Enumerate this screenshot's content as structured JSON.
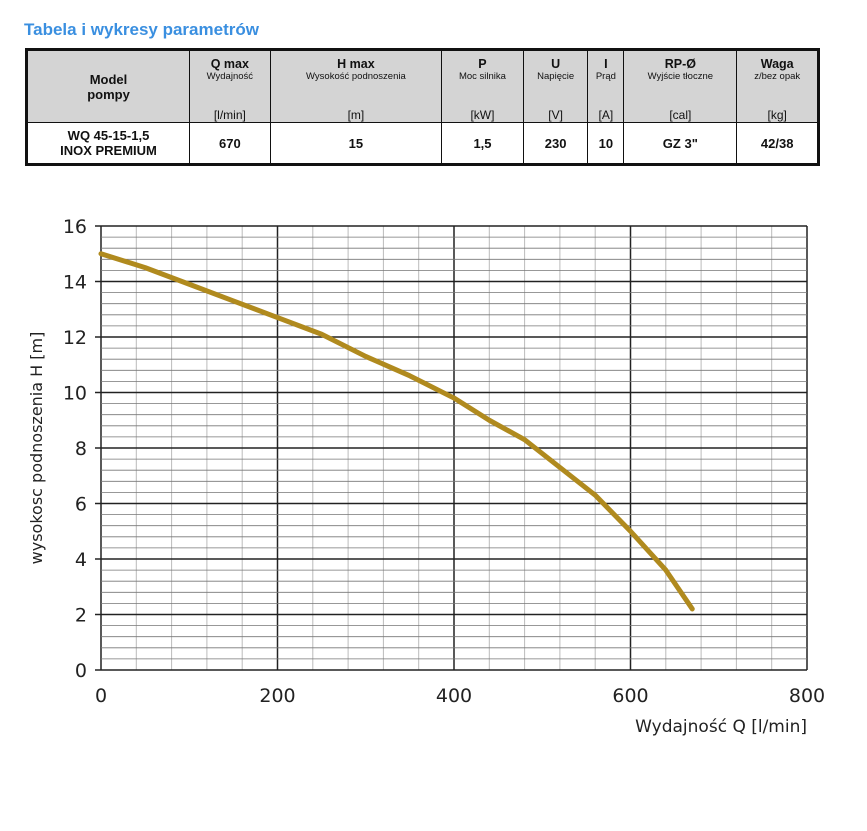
{
  "title": "Tabela i wykresy parametrów",
  "table": {
    "model_header": [
      "Model",
      "pompy"
    ],
    "columns": [
      {
        "name": "Q max",
        "desc": "Wydajność",
        "unit": "[l/min]"
      },
      {
        "name": "H max",
        "desc": "Wysokość podnoszenia",
        "unit": "[m]"
      },
      {
        "name": "P",
        "desc": "Moc silnika",
        "unit": "[kW]"
      },
      {
        "name": "U",
        "desc": "Napięcie",
        "unit": "[V]"
      },
      {
        "name": "I",
        "desc": "Prąd",
        "unit": "[A]"
      },
      {
        "name": "RP-Ø",
        "desc": "Wyjście tłoczne",
        "unit": "[cal]"
      },
      {
        "name": "Waga",
        "desc": "z/bez opak",
        "unit": "[kg]"
      }
    ],
    "row": {
      "model": [
        "WQ 45-15-1,5",
        "INOX PREMIUM"
      ],
      "values": [
        "670",
        "15",
        "1,5",
        "230",
        "10",
        "GZ 3\"",
        "42/38"
      ]
    }
  },
  "chart_data": {
    "type": "line",
    "title": "",
    "xlabel": "Wydajność Q [l/min]",
    "ylabel": "wysokosc podnoszenia H [m]",
    "xlim": [
      0,
      800
    ],
    "ylim": [
      0,
      16
    ],
    "xticks": [
      "0",
      "200",
      "400",
      "600",
      "800"
    ],
    "yticks": [
      "0",
      "2",
      "4",
      "6",
      "8",
      "10",
      "12",
      "14",
      "16"
    ],
    "grid": true,
    "series": [
      {
        "name": "WQ 45-15-1,5",
        "color": "#b08a1e",
        "x": [
          0,
          50,
          100,
          150,
          200,
          250,
          300,
          350,
          400,
          440,
          480,
          520,
          560,
          600,
          640,
          670
        ],
        "y": [
          15,
          14.5,
          13.9,
          13.3,
          12.7,
          12.1,
          11.3,
          10.6,
          9.8,
          9.0,
          8.3,
          7.3,
          6.3,
          5.0,
          3.6,
          2.2
        ]
      }
    ]
  }
}
